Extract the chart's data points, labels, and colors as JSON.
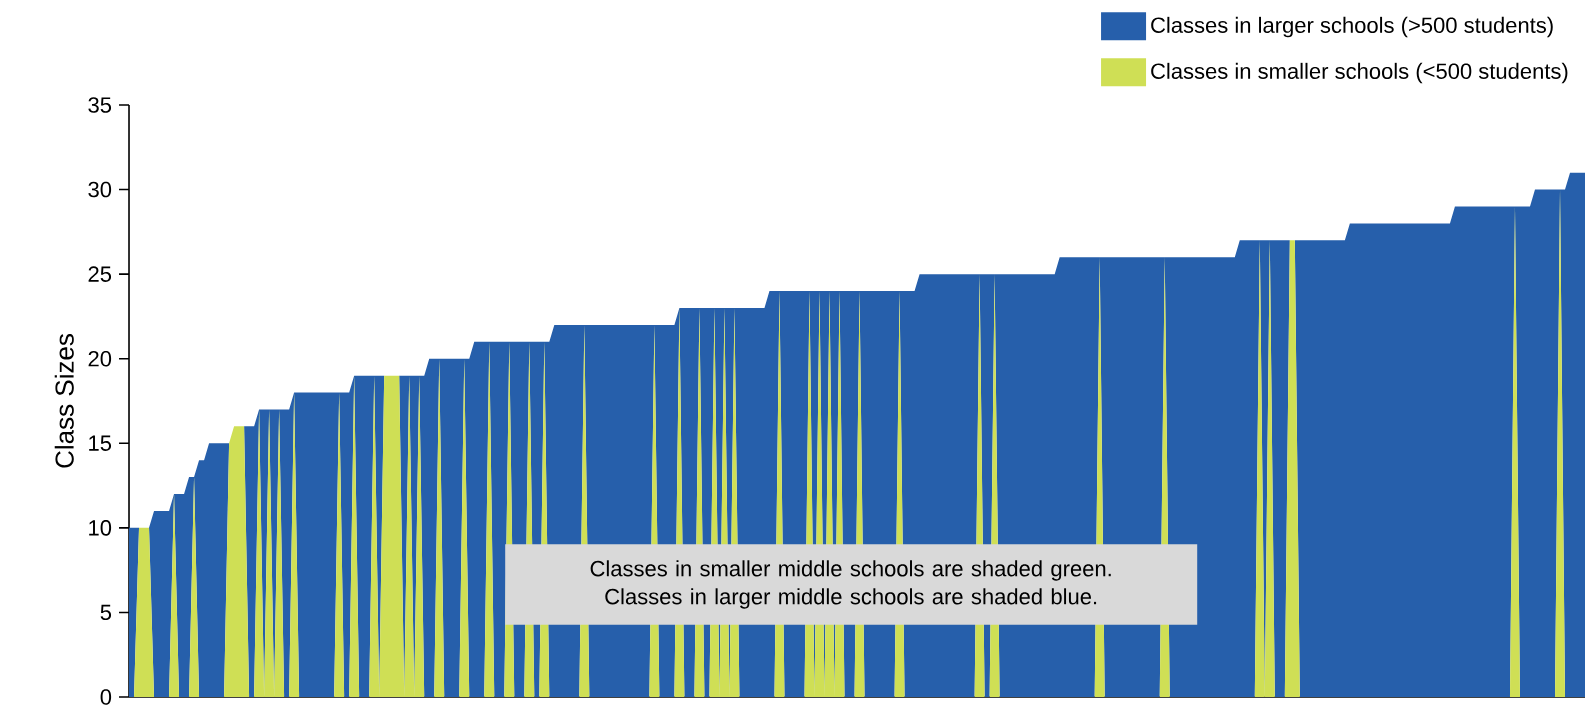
{
  "chart_data": {
    "type": "area",
    "stacked": true,
    "ylabel": "Class Sizes",
    "ylim": [
      0,
      35
    ],
    "yticks": [
      0,
      5,
      10,
      15,
      20,
      25,
      30,
      35
    ],
    "legend": "top right",
    "marker": "none",
    "annotations": [
      "Classes in smaller middle schools are shaded green.",
      "Classes in larger middle schools are shaded blue."
    ],
    "categories": [
      null,
      null,
      null,
      null,
      null,
      null,
      null,
      null,
      null,
      null,
      null,
      null,
      null,
      null,
      null,
      null,
      null,
      null,
      null,
      null,
      null,
      null,
      null,
      null,
      null,
      null,
      null,
      null,
      null,
      null,
      null,
      null,
      null,
      null,
      null,
      null,
      null,
      null,
      null,
      null,
      null,
      null,
      null,
      null,
      null,
      null,
      null,
      null,
      null,
      null,
      null,
      null,
      null,
      null,
      null,
      null,
      null,
      null,
      null,
      null,
      null,
      null,
      null,
      null,
      null,
      null,
      null,
      null,
      null,
      null,
      null,
      null,
      null,
      null,
      null,
      null,
      null,
      null,
      null,
      null,
      null,
      null,
      null,
      null,
      null,
      null,
      null,
      null,
      null,
      null,
      null,
      null,
      null,
      null,
      null,
      null,
      null,
      null,
      null,
      null,
      null,
      null,
      null,
      null,
      null,
      null,
      null,
      null,
      null,
      null,
      null,
      null,
      null,
      null,
      null,
      null,
      null,
      null,
      null,
      null,
      null,
      null,
      null,
      null,
      null,
      null,
      null,
      null,
      null,
      null,
      null,
      null,
      null,
      null,
      null,
      null,
      null,
      null,
      null,
      null,
      null,
      null,
      null,
      null,
      null,
      null,
      null,
      null,
      null,
      null,
      null,
      null,
      null,
      null,
      null,
      null,
      null,
      null,
      null,
      null,
      null,
      null,
      null,
      null,
      null,
      null,
      null,
      null,
      null,
      null,
      null,
      null,
      null,
      null,
      null,
      null,
      null,
      null,
      null,
      null,
      null,
      null,
      null,
      null,
      null,
      null,
      null,
      null,
      null,
      null,
      null,
      null,
      null,
      null,
      null,
      null,
      null,
      null,
      null,
      null,
      null,
      null,
      null,
      null,
      null,
      null,
      null,
      null,
      null,
      null,
      null,
      null,
      null,
      null,
      null,
      null,
      null,
      null,
      null,
      null,
      null,
      null,
      null,
      null,
      null,
      null,
      null,
      null,
      null,
      null,
      null,
      null,
      null,
      null,
      null,
      null,
      null,
      null,
      null,
      null,
      null,
      null,
      null,
      null,
      null,
      null,
      null,
      null,
      null,
      null,
      null,
      null,
      null,
      null,
      null,
      null,
      null,
      null,
      null,
      null,
      null,
      null,
      null,
      null,
      null,
      null,
      null,
      null,
      null,
      null,
      null,
      null,
      null,
      null,
      null,
      null,
      null,
      null,
      null,
      null,
      null,
      null,
      null,
      null,
      null,
      null,
      null,
      null,
      null,
      null,
      null,
      null
    ],
    "series": [
      {
        "name": "Classes in smaller schools (<500 students)",
        "color": "#cfdf55",
        "values": [
          0,
          0,
          10,
          10,
          10,
          0,
          0,
          0,
          0,
          12,
          0,
          0,
          0,
          13,
          0,
          0,
          0,
          0,
          0,
          0,
          15,
          16,
          16,
          16,
          0,
          0,
          17,
          0,
          17,
          0,
          17,
          0,
          0,
          18,
          0,
          0,
          0,
          0,
          0,
          0,
          0,
          0,
          18,
          0,
          0,
          19,
          0,
          0,
          0,
          19,
          0,
          19,
          19,
          19,
          19,
          0,
          19,
          0,
          19,
          0,
          0,
          0,
          20,
          0,
          0,
          0,
          0,
          20,
          0,
          0,
          0,
          0,
          21,
          0,
          0,
          0,
          21,
          0,
          0,
          0,
          21,
          0,
          0,
          21,
          0,
          0,
          0,
          0,
          0,
          0,
          0,
          22,
          0,
          0,
          0,
          0,
          0,
          0,
          0,
          0,
          0,
          0,
          0,
          0,
          0,
          22,
          0,
          0,
          0,
          0,
          23,
          0,
          0,
          0,
          23,
          0,
          0,
          23,
          0,
          23,
          0,
          23,
          0,
          0,
          0,
          0,
          0,
          0,
          0,
          0,
          24,
          0,
          0,
          0,
          0,
          0,
          24,
          0,
          24,
          0,
          24,
          0,
          24,
          0,
          0,
          0,
          24,
          0,
          0,
          0,
          0,
          0,
          0,
          0,
          24,
          0,
          0,
          0,
          0,
          0,
          0,
          0,
          0,
          0,
          0,
          0,
          0,
          0,
          0,
          0,
          25,
          0,
          0,
          25,
          0,
          0,
          0,
          0,
          0,
          0,
          0,
          0,
          0,
          0,
          0,
          0,
          0,
          0,
          0,
          0,
          0,
          0,
          0,
          0,
          26,
          0,
          0,
          0,
          0,
          0,
          0,
          0,
          0,
          0,
          0,
          0,
          0,
          26,
          0,
          0,
          0,
          0,
          0,
          0,
          0,
          0,
          0,
          0,
          0,
          0,
          0,
          0,
          0,
          0,
          0,
          0,
          27,
          0,
          27,
          0,
          0,
          0,
          27,
          27,
          0,
          0,
          0,
          0,
          0,
          0,
          0,
          0,
          0,
          0,
          0,
          0,
          0,
          0,
          0,
          0,
          0,
          0,
          0,
          0,
          0,
          0,
          0,
          0,
          0,
          0,
          0,
          0,
          0,
          0,
          0,
          0,
          0,
          0,
          0,
          0,
          0,
          0,
          0,
          0,
          0,
          0,
          0,
          29,
          0,
          0,
          0,
          0,
          0,
          0,
          0,
          0,
          30,
          0,
          0,
          0,
          0,
          0
        ]
      },
      {
        "name": "Classes in larger schools (>500 students)",
        "color": "#265fab",
        "values": [
          10,
          10,
          0,
          0,
          0,
          11,
          11,
          11,
          11,
          0,
          12,
          12,
          13,
          0,
          14,
          14,
          15,
          15,
          15,
          15,
          0,
          0,
          0,
          0,
          16,
          16,
          0,
          17,
          0,
          17,
          0,
          17,
          17,
          0,
          18,
          18,
          18,
          18,
          18,
          18,
          18,
          18,
          0,
          18,
          18,
          0,
          19,
          19,
          19,
          0,
          19,
          0,
          0,
          0,
          0,
          19,
          0,
          19,
          0,
          19,
          20,
          20,
          0,
          20,
          20,
          20,
          20,
          0,
          20,
          21,
          21,
          21,
          0,
          21,
          21,
          21,
          0,
          21,
          21,
          21,
          0,
          21,
          21,
          0,
          21,
          22,
          22,
          22,
          22,
          22,
          22,
          0,
          22,
          22,
          22,
          22,
          22,
          22,
          22,
          22,
          22,
          22,
          22,
          22,
          22,
          0,
          22,
          22,
          22,
          22,
          0,
          23,
          23,
          23,
          0,
          23,
          23,
          0,
          23,
          0,
          23,
          0,
          23,
          23,
          23,
          23,
          23,
          23,
          24,
          24,
          0,
          24,
          24,
          24,
          24,
          24,
          0,
          24,
          0,
          24,
          0,
          24,
          0,
          24,
          24,
          24,
          0,
          24,
          24,
          24,
          24,
          24,
          24,
          24,
          0,
          24,
          24,
          24,
          25,
          25,
          25,
          25,
          25,
          25,
          25,
          25,
          25,
          25,
          25,
          25,
          0,
          25,
          25,
          0,
          25,
          25,
          25,
          25,
          25,
          25,
          25,
          25,
          25,
          25,
          25,
          25,
          26,
          26,
          26,
          26,
          26,
          26,
          26,
          26,
          0,
          26,
          26,
          26,
          26,
          26,
          26,
          26,
          26,
          26,
          26,
          26,
          26,
          0,
          26,
          26,
          26,
          26,
          26,
          26,
          26,
          26,
          26,
          26,
          26,
          26,
          26,
          26,
          27,
          27,
          27,
          27,
          0,
          27,
          0,
          27,
          27,
          27,
          0,
          0,
          27,
          27,
          27,
          27,
          27,
          27,
          27,
          27,
          27,
          27,
          28,
          28,
          28,
          28,
          28,
          28,
          28,
          28,
          28,
          28,
          28,
          28,
          28,
          28,
          28,
          28,
          28,
          28,
          28,
          28,
          28,
          29,
          29,
          29,
          29,
          29,
          29,
          29,
          29,
          29,
          29,
          29,
          29,
          0,
          29,
          29,
          29,
          30,
          30,
          30,
          30,
          30,
          0,
          30,
          31,
          31,
          31,
          31
        ]
      }
    ]
  }
}
